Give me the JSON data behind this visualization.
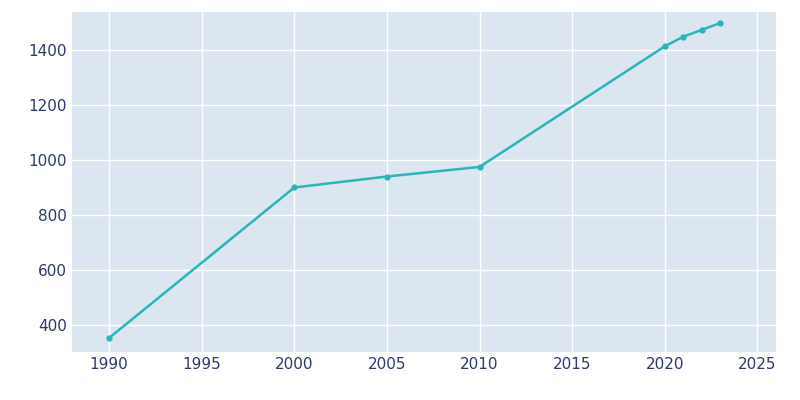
{
  "years": [
    1990,
    2000,
    2005,
    2010,
    2020,
    2021,
    2022,
    2023
  ],
  "population": [
    351,
    900,
    940,
    975,
    1415,
    1450,
    1475,
    1500
  ],
  "line_color": "#2bb5b8",
  "marker": "o",
  "marker_size": 3.5,
  "line_width": 1.8,
  "background_color": "#dce6f0",
  "plot_bg_color": "#dce6f0",
  "fig_bg_color": "#ffffff",
  "grid_color": "#ffffff",
  "tick_color": "#2d3a6b",
  "xlim": [
    1988,
    2026
  ],
  "ylim": [
    300,
    1540
  ],
  "xticks": [
    1990,
    1995,
    2000,
    2005,
    2010,
    2015,
    2020,
    2025
  ],
  "yticks": [
    400,
    600,
    800,
    1000,
    1200,
    1400
  ]
}
